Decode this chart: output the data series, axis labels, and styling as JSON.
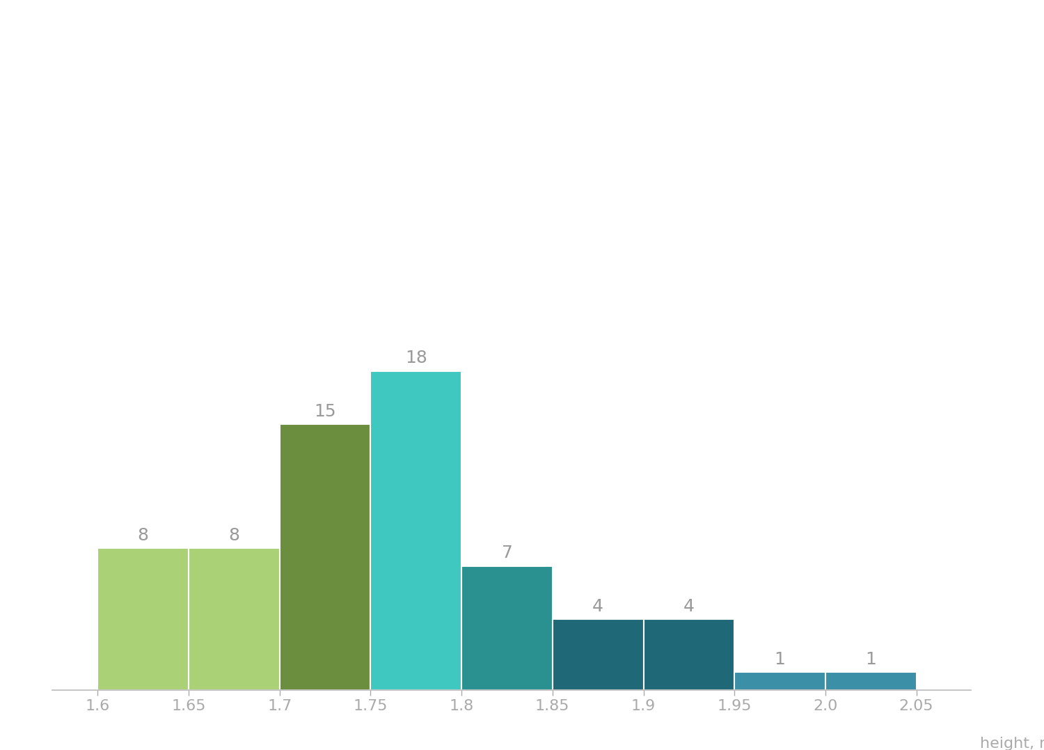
{
  "xlabel": "height, m",
  "bins": [
    1.6,
    1.65,
    1.7,
    1.75,
    1.8,
    1.85,
    1.9,
    1.95,
    2.0,
    2.05
  ],
  "counts": [
    8,
    8,
    15,
    18,
    7,
    4,
    4,
    1,
    1
  ],
  "colors": [
    "#aad176",
    "#aad176",
    "#6b8e3e",
    "#3ec8c0",
    "#2a9090",
    "#1e6878",
    "#1e6878",
    "#3b90a8",
    "#3b90a8"
  ],
  "bar_edge_color": "#ffffff",
  "background_color": "#ffffff",
  "label_color": "#999999",
  "label_fontsize": 18,
  "tick_fontsize": 16,
  "xlabel_fontsize": 16,
  "ylim": [
    0,
    22
  ],
  "xlim": [
    1.575,
    2.08
  ]
}
